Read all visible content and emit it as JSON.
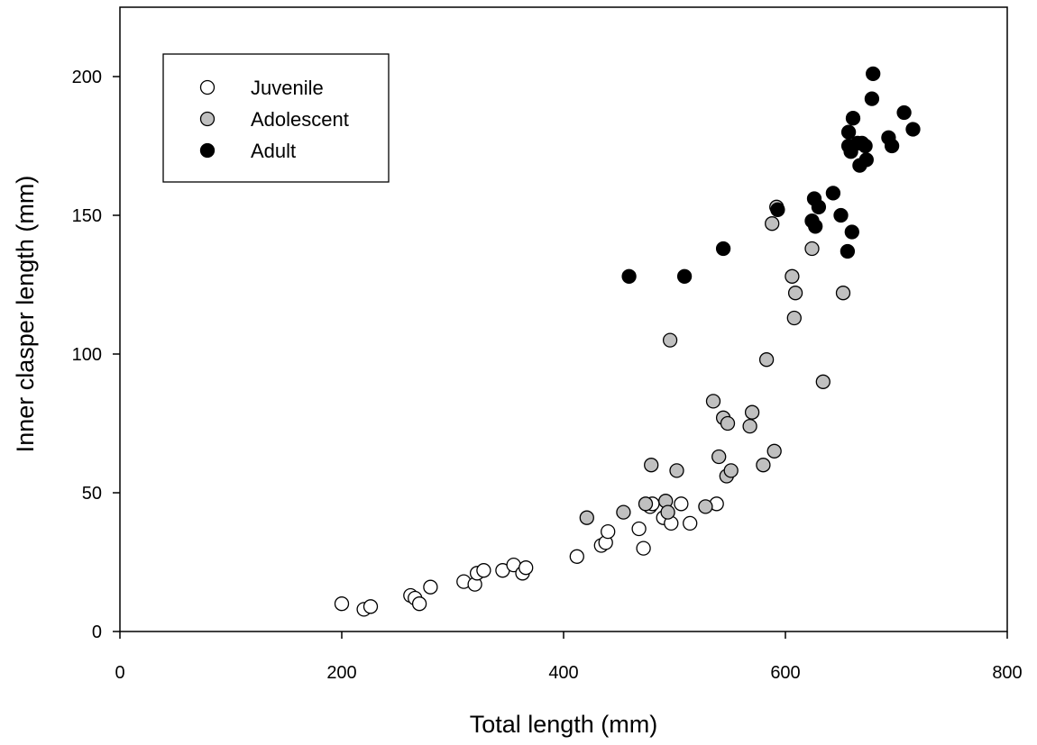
{
  "chart_data": {
    "type": "scatter",
    "title": "",
    "xlabel": "Total length (mm)",
    "ylabel": "Inner clasper length (mm)",
    "xlim": [
      0,
      800
    ],
    "ylim": [
      0,
      200
    ],
    "xticks": [
      "0",
      "200",
      "400",
      "600",
      "800"
    ],
    "yticks": [
      "0",
      "50",
      "100",
      "150",
      "200"
    ],
    "grid": false,
    "legend_position": "top-left",
    "series": [
      {
        "name": "Juvenile",
        "fill": "#ffffff",
        "points": [
          [
            200,
            10
          ],
          [
            220,
            8
          ],
          [
            226,
            9
          ],
          [
            262,
            13
          ],
          [
            266,
            12
          ],
          [
            270,
            10
          ],
          [
            280,
            16
          ],
          [
            310,
            18
          ],
          [
            320,
            17
          ],
          [
            322,
            21
          ],
          [
            328,
            22
          ],
          [
            345,
            22
          ],
          [
            355,
            24
          ],
          [
            363,
            21
          ],
          [
            366,
            23
          ],
          [
            412,
            27
          ],
          [
            434,
            31
          ],
          [
            438,
            32
          ],
          [
            440,
            36
          ],
          [
            468,
            37
          ],
          [
            472,
            30
          ],
          [
            478,
            45
          ],
          [
            480,
            46
          ],
          [
            490,
            41
          ],
          [
            497,
            39
          ],
          [
            506,
            46
          ],
          [
            514,
            39
          ],
          [
            538,
            46
          ]
        ]
      },
      {
        "name": "Adolescent",
        "fill": "#c0c0c0",
        "points": [
          [
            421,
            41
          ],
          [
            454,
            43
          ],
          [
            474,
            46
          ],
          [
            479,
            60
          ],
          [
            492,
            47
          ],
          [
            494,
            43
          ],
          [
            496,
            105
          ],
          [
            502,
            58
          ],
          [
            528,
            45
          ],
          [
            535,
            83
          ],
          [
            540,
            63
          ],
          [
            544,
            77
          ],
          [
            547,
            56
          ],
          [
            548,
            75
          ],
          [
            551,
            58
          ],
          [
            568,
            74
          ],
          [
            570,
            79
          ],
          [
            580,
            60
          ],
          [
            583,
            98
          ],
          [
            590,
            65
          ],
          [
            588,
            147
          ],
          [
            592,
            153
          ],
          [
            606,
            128
          ],
          [
            608,
            113
          ],
          [
            609,
            122
          ],
          [
            624,
            138
          ],
          [
            634,
            90
          ],
          [
            652,
            122
          ]
        ]
      },
      {
        "name": "Adult",
        "fill": "#000000",
        "points": [
          [
            459,
            128
          ],
          [
            509,
            128
          ],
          [
            544,
            138
          ],
          [
            593,
            152
          ],
          [
            624,
            148
          ],
          [
            626,
            156
          ],
          [
            627,
            146
          ],
          [
            630,
            153
          ],
          [
            643,
            158
          ],
          [
            650,
            150
          ],
          [
            656,
            137
          ],
          [
            657,
            180
          ],
          [
            657,
            175
          ],
          [
            659,
            173
          ],
          [
            660,
            144
          ],
          [
            661,
            185
          ],
          [
            667,
            168
          ],
          [
            669,
            176
          ],
          [
            672,
            175
          ],
          [
            673,
            170
          ],
          [
            678,
            192
          ],
          [
            679,
            201
          ],
          [
            693,
            178
          ],
          [
            696,
            175
          ],
          [
            707,
            187
          ],
          [
            715,
            181
          ],
          [
            665,
            176
          ]
        ]
      }
    ]
  }
}
